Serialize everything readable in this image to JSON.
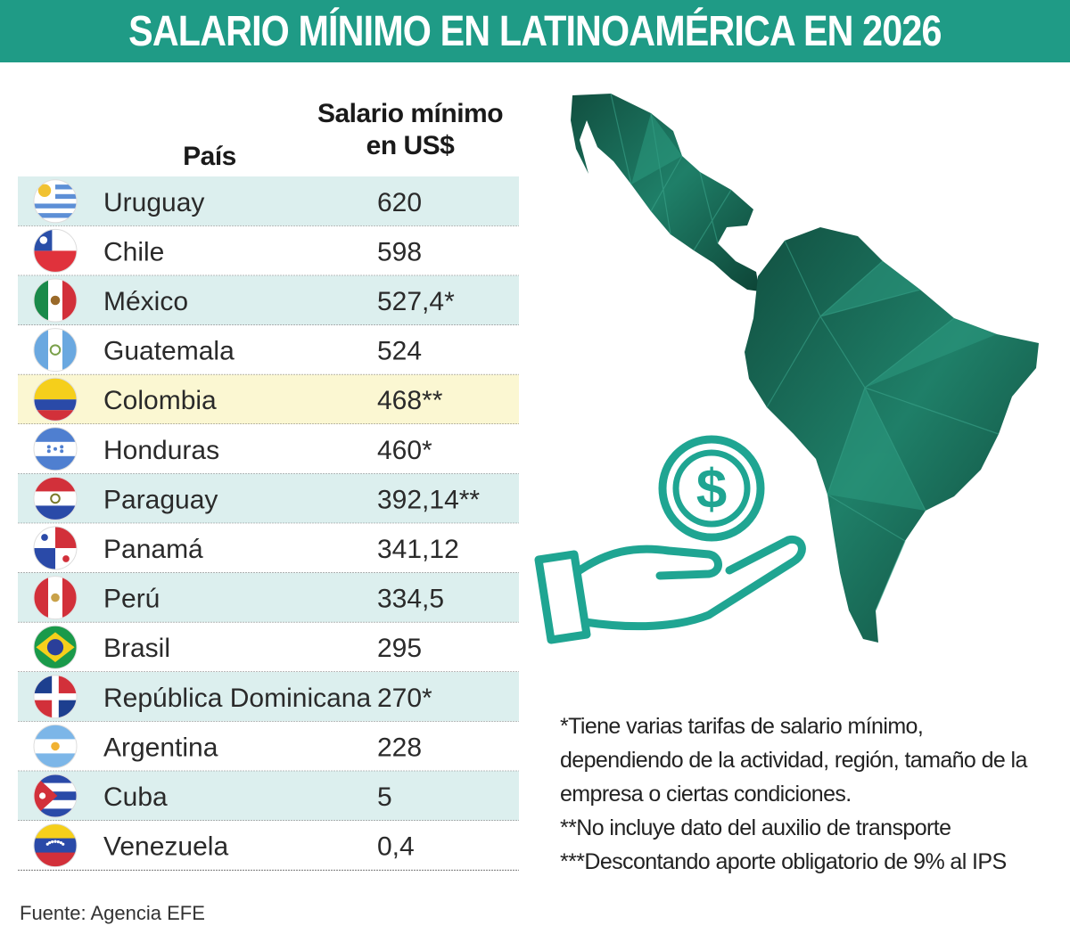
{
  "title": "SALARIO MÍNIMO EN LATINOAMÉRICA EN 2026",
  "headers": {
    "country": "País",
    "salary_line1": "Salario mínimo",
    "salary_line2": "en US$"
  },
  "colors": {
    "accent": "#1f9b86",
    "row_shaded": "#dcefee",
    "row_highlight": "#fbf7d2",
    "map": "#1c6e58"
  },
  "chart_data": {
    "type": "table",
    "title": "SALARIO MÍNIMO EN LATINOAMÉRICA EN 2026",
    "columns": [
      "País",
      "Salario mínimo en US$"
    ],
    "rows": [
      {
        "country": "Uruguay",
        "salary": "620",
        "value": 620,
        "flag": "uruguay-flag-icon"
      },
      {
        "country": "Chile",
        "salary": "598",
        "value": 598,
        "flag": "chile-flag-icon"
      },
      {
        "country": "México",
        "salary": "527,4*",
        "value": 527.4,
        "flag": "mexico-flag-icon"
      },
      {
        "country": "Guatemala",
        "salary": "524",
        "value": 524,
        "flag": "guatemala-flag-icon"
      },
      {
        "country": "Colombia",
        "salary": "468**",
        "value": 468,
        "flag": "colombia-flag-icon",
        "highlight": true
      },
      {
        "country": "Honduras",
        "salary": "460*",
        "value": 460,
        "flag": "honduras-flag-icon"
      },
      {
        "country": "Paraguay",
        "salary": "392,14**",
        "value": 392.14,
        "flag": "paraguay-flag-icon"
      },
      {
        "country": "Panamá",
        "salary": "341,12",
        "value": 341.12,
        "flag": "panama-flag-icon"
      },
      {
        "country": "Perú",
        "salary": "334,5",
        "value": 334.5,
        "flag": "peru-flag-icon"
      },
      {
        "country": "Brasil",
        "salary": "295",
        "value": 295,
        "flag": "brazil-flag-icon"
      },
      {
        "country": "República Dominicana",
        "salary": "270*",
        "value": 270,
        "flag": "dominican-republic-flag-icon"
      },
      {
        "country": "Argentina",
        "salary": "228",
        "value": 228,
        "flag": "argentina-flag-icon"
      },
      {
        "country": "Cuba",
        "salary": "5",
        "value": 5,
        "flag": "cuba-flag-icon"
      },
      {
        "country": "Venezuela",
        "salary": "0,4",
        "value": 0.4,
        "flag": "venezuela-flag-icon"
      }
    ]
  },
  "notes": [
    "*Tiene varias tarifas de salario mínimo,",
    "dependiendo de la actividad, región, tamaño de la",
    "empresa o ciertas condiciones.",
    "**No incluye dato del auxilio de transporte",
    "***Descontando aporte obligatorio de 9% al IPS"
  ],
  "source": "Fuente: Agencia EFE",
  "illustration": {
    "map_icon": "latin-america-map-icon",
    "hand_icon": "hand-holding-coin-icon",
    "coin_symbol": "$"
  }
}
